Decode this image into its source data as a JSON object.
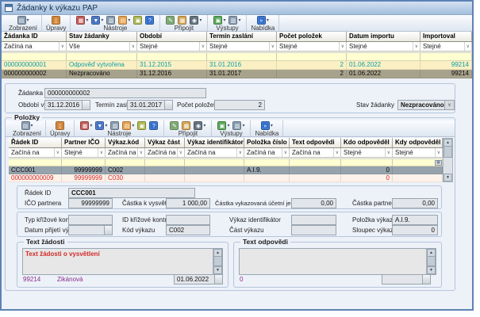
{
  "window": {
    "title": "Žádanky k výkazu PAP"
  },
  "toolbar": {
    "groups": [
      {
        "label": "Zobrazení",
        "icons": [
          {
            "name": "view-settings-icon",
            "glyph": "▤",
            "color": "#7f96ab",
            "dropdown": true
          }
        ]
      },
      {
        "label": "Úpravy",
        "icons": [
          {
            "name": "delete-icon",
            "glyph": "▯",
            "color": "#d08030",
            "dropdown": false
          }
        ]
      },
      {
        "label": "Nástroje",
        "icons": [
          {
            "name": "format-icon",
            "glyph": "▦",
            "color": "#c0504d",
            "dropdown": true
          },
          {
            "name": "filter-icon",
            "glyph": "▼",
            "color": "#4472c4",
            "dropdown": true
          },
          {
            "name": "copy-icon",
            "glyph": "▥",
            "color": "#7f96ab",
            "dropdown": false
          },
          {
            "name": "archive-icon",
            "glyph": "▤",
            "color": "#e39b40",
            "dropdown": true
          },
          {
            "name": "image-icon",
            "glyph": "▣",
            "color": "#a8b548",
            "dropdown": false
          },
          {
            "name": "help-icon",
            "glyph": "?",
            "color": "#2f6fce",
            "dropdown": false
          }
        ]
      },
      {
        "label": "Připojit",
        "icons": [
          {
            "name": "note-icon",
            "glyph": "✎",
            "color": "#79a86f",
            "dropdown": false
          },
          {
            "name": "table-icon",
            "glyph": "▦",
            "color": "#d2a24c",
            "dropdown": false
          },
          {
            "name": "snapshot-icon",
            "glyph": "◉",
            "color": "#5a6b7a",
            "dropdown": true
          }
        ]
      },
      {
        "label": "Výstupy",
        "icons": [
          {
            "name": "export-icon",
            "glyph": "▣",
            "color": "#4ea24e",
            "dropdown": true
          },
          {
            "name": "print-icon",
            "glyph": "▥",
            "color": "#7f96ab",
            "dropdown": true
          }
        ]
      },
      {
        "label": "Nabídka",
        "icons": [
          {
            "name": "menu-icon",
            "glyph": "»",
            "color": "#2f6fce",
            "dropdown": true
          }
        ]
      }
    ]
  },
  "requests_grid": {
    "columns": [
      "Žádanka ID",
      "Stav žádanky",
      "Období",
      "Termín zaslání",
      "Počet položek",
      "Datum importu",
      "Importoval"
    ],
    "filters": [
      "Začíná na",
      "Vše",
      "Stejné",
      "Stejné",
      "Stejné",
      "Stejné",
      "Stejné"
    ],
    "rows": [
      {
        "state": "highlight",
        "cells": [
          "000000000001",
          "Odpověď vytvořena",
          "31.12.2015",
          "31.01.2016",
          "2",
          "01.06.2022",
          "99214"
        ]
      },
      {
        "state": "selected",
        "cells": [
          "000000000002",
          "Nezpracováno",
          "31.12.2016",
          "31.01.2017",
          "2",
          "01.06.2022",
          "99214"
        ]
      }
    ]
  },
  "request_detail": {
    "zadanka_id": {
      "label": "Žádanka ID",
      "value": "000000000002"
    },
    "obdobi_vykazu": {
      "label": "Období výkazu",
      "value": "31.12.2016"
    },
    "termin_zaslani": {
      "label": "Termín zaslání",
      "value": "31.01.2017"
    },
    "pocet_polozek": {
      "label": "Počet položek",
      "value": "2"
    },
    "stav_zadanky": {
      "label": "Stav žádanky",
      "value": "Nezpracováno"
    }
  },
  "items_section": {
    "title": "Položky",
    "grid": {
      "columns": [
        "Řádek ID",
        "Partner IČO",
        "Výkaz.kód",
        "Výkaz část",
        "Výkaz identifikátor",
        "Položka číslo",
        "Text odpovědi",
        "Kdo odpověděl",
        "Kdy odpověděl"
      ],
      "filters": [
        "Začíná na",
        "Stejné",
        "Začíná na",
        "Začíná na",
        "Začíná na",
        "Začíná na",
        "Začíná na",
        "Stejné",
        "Stejné"
      ],
      "rows": [
        {
          "state": "selected",
          "cells": [
            "CCC001",
            "99999999",
            "C002",
            "",
            "",
            "A.I.9.",
            "",
            "0",
            ""
          ]
        },
        {
          "state": "error",
          "cells": [
            "000000000009",
            "99999999",
            "C030",
            "",
            "",
            "",
            "",
            "0",
            ""
          ]
        }
      ]
    }
  },
  "item_detail": {
    "radek_id": {
      "label": "Řádek ID",
      "value": "CCC001"
    },
    "ico_partnera": {
      "label": "IČO partnera",
      "value": "99999999"
    },
    "castka_k_vysvetleni": {
      "label": "Částka k vysvětlení",
      "value": "1 000,00"
    },
    "castka_vykazovana": {
      "label": "Částka vykazovaná účetní jednotky",
      "value": "0,00"
    },
    "castka_partnera": {
      "label": "Částka partnera",
      "value": "0,00"
    },
    "typ_krizove_kontroly": {
      "label": "Typ křížové kontroly",
      "value": ""
    },
    "id_krizove_kontroly": {
      "label": "ID křížové kontroly",
      "value": ""
    },
    "vykaz_identifikator": {
      "label": "Výkaz identifikátor",
      "value": ""
    },
    "polozka_vykazu": {
      "label": "Položka výkazu",
      "value": "A.I.9."
    },
    "datum_prijeti": {
      "label": "Datum přijetí výkazu",
      "value": ""
    },
    "kod_vykazu": {
      "label": "Kód výkazu",
      "value": "C002"
    },
    "cast_vykazu": {
      "label": "Část výkazu",
      "value": ""
    },
    "sloupec_vykazu": {
      "label": "Sloupec výkazu",
      "value": "0"
    }
  },
  "text_zadosti": {
    "title": "Text žádosti",
    "content": "Text žádosti o vysvětlení",
    "user_id": "99214",
    "user_name": "Zikánová",
    "date": "01.06.2022"
  },
  "text_odpovedi": {
    "title": "Text odpovědi",
    "content": "",
    "responder_id": "0",
    "date": ""
  }
}
